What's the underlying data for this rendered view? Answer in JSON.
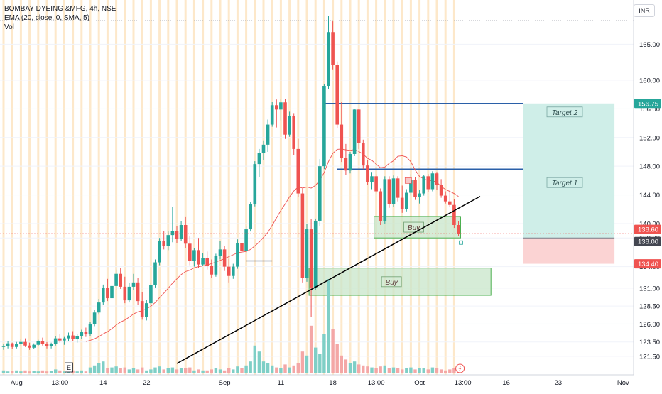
{
  "header": {
    "symbol": "BOMBAY DYEING &MFG, 4h, NSE",
    "ema_label": "EMA (20, close, 0, SMA, 5)",
    "vol_label": "Vol",
    "currency": "INR",
    "e_marker": "E"
  },
  "colors": {
    "up": "#26a69a",
    "down": "#ef5350",
    "up_vol": "#7fcfc6",
    "down_vol": "#f4a7a6",
    "session_band": "#fde5c4",
    "ema": "#ef5350",
    "trendline": "#000000",
    "level_line": "#2a5fa8",
    "buy_zone_fill": "#c8e6c9",
    "buy_zone_border": "#4caf50",
    "target_fill": "#cfeee8",
    "stop_fill": "#fbd3d3",
    "price_badge_green": "#26a69a",
    "price_badge_red": "#ef5350",
    "price_badge_dark": "#434651"
  },
  "chart_data": {
    "type": "candlestick",
    "ylim": [
      120.5,
      169
    ],
    "y_ticks": [
      "121.50",
      "123.50",
      "126.00",
      "128.50",
      "131.00",
      "134.00",
      "138.00",
      "140.00",
      "144.00",
      "148.00",
      "152.00",
      "156.00",
      "160.00",
      "165.00"
    ],
    "x_ticks": [
      {
        "label": "Aug",
        "bar": 3
      },
      {
        "label": "13:00",
        "bar": 13
      },
      {
        "label": "14",
        "bar": 23
      },
      {
        "label": "22",
        "bar": 33
      },
      {
        "label": "Sep",
        "bar": 51
      },
      {
        "label": "11",
        "bar": 64
      },
      {
        "label": "18",
        "bar": 76
      },
      {
        "label": "13:00",
        "bar": 86
      },
      {
        "label": "Oct",
        "bar": 96
      },
      {
        "label": "13:00",
        "bar": 106
      },
      {
        "label": "16",
        "bar": 116
      },
      {
        "label": "23",
        "bar": 128
      },
      {
        "label": "Nov",
        "bar": 143
      }
    ],
    "price_labels": [
      {
        "value": 156.75,
        "text": "156.75",
        "style": "green"
      },
      {
        "value": 138.6,
        "text": "138.60",
        "style": "red"
      },
      {
        "value": 138.0,
        "text": "138.00",
        "style": "dark"
      },
      {
        "value": 134.4,
        "text": "134.40",
        "style": "red"
      }
    ],
    "last_price": 138.6,
    "top_dotted": 168.3,
    "candles": [
      [
        122.8,
        123.2,
        122.4,
        122.9
      ],
      [
        122.9,
        123.6,
        122.6,
        123.3
      ],
      [
        123.3,
        123.4,
        122.5,
        122.8
      ],
      [
        122.8,
        123.5,
        122.6,
        123.2
      ],
      [
        123.2,
        123.9,
        122.9,
        123.5
      ],
      [
        123.5,
        124.0,
        122.8,
        123.0
      ],
      [
        123.0,
        123.4,
        122.4,
        122.7
      ],
      [
        122.7,
        123.3,
        122.5,
        123.1
      ],
      [
        123.1,
        123.8,
        122.9,
        123.6
      ],
      [
        123.6,
        124.1,
        123.0,
        123.2
      ],
      [
        123.2,
        123.5,
        122.6,
        122.9
      ],
      [
        122.9,
        123.4,
        122.6,
        123.2
      ],
      [
        123.2,
        124.3,
        123.0,
        124.0
      ],
      [
        124.0,
        124.6,
        123.4,
        123.7
      ],
      [
        123.7,
        124.2,
        123.1,
        124.0
      ],
      [
        124.0,
        124.8,
        123.6,
        124.4
      ],
      [
        124.4,
        125.0,
        123.6,
        123.9
      ],
      [
        123.9,
        124.6,
        123.4,
        124.3
      ],
      [
        124.3,
        125.2,
        123.9,
        124.9
      ],
      [
        124.9,
        125.5,
        124.2,
        124.6
      ],
      [
        124.6,
        126.3,
        124.3,
        126.0
      ],
      [
        126.0,
        128.0,
        125.7,
        127.6
      ],
      [
        127.6,
        129.5,
        127.3,
        129.0
      ],
      [
        129.0,
        131.5,
        128.7,
        131.0
      ],
      [
        131.0,
        132.3,
        129.2,
        129.6
      ],
      [
        129.6,
        131.8,
        129.2,
        131.3
      ],
      [
        131.3,
        133.6,
        130.8,
        133.0
      ],
      [
        133.0,
        133.8,
        130.9,
        131.2
      ],
      [
        131.2,
        132.6,
        128.9,
        129.3
      ],
      [
        129.3,
        131.7,
        129.0,
        131.2
      ],
      [
        131.2,
        133.0,
        130.8,
        131.8
      ],
      [
        131.8,
        132.4,
        128.7,
        129.2
      ],
      [
        129.2,
        130.4,
        126.6,
        127.0
      ],
      [
        127.0,
        129.4,
        126.5,
        128.9
      ],
      [
        128.9,
        131.8,
        128.5,
        131.4
      ],
      [
        131.4,
        135.0,
        131.1,
        134.6
      ],
      [
        134.6,
        138.0,
        134.2,
        137.6
      ],
      [
        137.6,
        139.0,
        136.4,
        136.9
      ],
      [
        136.9,
        138.9,
        136.3,
        138.4
      ],
      [
        138.4,
        142.3,
        137.4,
        139.0
      ],
      [
        139.0,
        139.6,
        137.3,
        137.9
      ],
      [
        137.9,
        140.3,
        137.6,
        139.8
      ],
      [
        139.8,
        141.0,
        136.6,
        137.2
      ],
      [
        137.2,
        138.3,
        134.2,
        134.8
      ],
      [
        134.8,
        136.6,
        134.0,
        136.3
      ],
      [
        136.3,
        138.0,
        133.8,
        134.3
      ],
      [
        134.3,
        135.9,
        134.1,
        135.2
      ],
      [
        135.2,
        136.1,
        133.6,
        134.1
      ],
      [
        134.1,
        135.0,
        132.4,
        132.9
      ],
      [
        132.9,
        135.8,
        132.6,
        135.5
      ],
      [
        135.5,
        137.6,
        135.0,
        136.4
      ],
      [
        136.4,
        136.9,
        133.4,
        134.0
      ],
      [
        134.0,
        135.1,
        131.8,
        132.7
      ],
      [
        132.7,
        134.4,
        132.3,
        134.0
      ],
      [
        134.0,
        137.8,
        133.7,
        137.3
      ],
      [
        137.3,
        138.4,
        135.6,
        136.2
      ],
      [
        136.2,
        139.6,
        135.9,
        139.2
      ],
      [
        139.2,
        143.0,
        138.9,
        142.7
      ],
      [
        142.7,
        148.7,
        142.4,
        148.3
      ],
      [
        148.3,
        150.4,
        146.5,
        149.8
      ],
      [
        149.8,
        151.6,
        148.9,
        151.0
      ],
      [
        151.0,
        154.5,
        150.0,
        153.8
      ],
      [
        153.8,
        157.0,
        153.5,
        156.5
      ],
      [
        156.5,
        157.3,
        153.4,
        155.9
      ],
      [
        155.9,
        157.4,
        154.4,
        156.9
      ],
      [
        156.9,
        157.4,
        151.8,
        152.4
      ],
      [
        152.4,
        155.6,
        152.1,
        155.0
      ],
      [
        155.0,
        155.4,
        149.6,
        150.4
      ],
      [
        150.4,
        151.8,
        143.7,
        144.2
      ],
      [
        144.2,
        144.9,
        131.8,
        132.4
      ],
      [
        132.4,
        140.0,
        131.9,
        139.2
      ],
      [
        139.2,
        140.6,
        127.0,
        131.1
      ],
      [
        131.1,
        140.7,
        130.8,
        140.4
      ],
      [
        140.4,
        149.0,
        139.6,
        148.0
      ],
      [
        148.0,
        159.5,
        147.6,
        159.2
      ],
      [
        159.2,
        169.0,
        158.8,
        166.7
      ],
      [
        166.7,
        168.2,
        161.5,
        162.1
      ],
      [
        162.1,
        162.6,
        153.3,
        153.8
      ],
      [
        153.8,
        157.0,
        148.6,
        149.2
      ],
      [
        149.2,
        151.1,
        146.8,
        147.4
      ],
      [
        147.4,
        150.0,
        147.0,
        149.7
      ],
      [
        149.7,
        156.0,
        149.4,
        155.9
      ],
      [
        155.9,
        156.0,
        150.4,
        151.2
      ],
      [
        151.2,
        151.7,
        147.6,
        148.1
      ],
      [
        148.1,
        148.9,
        145.4,
        145.8
      ],
      [
        145.8,
        147.2,
        144.8,
        146.6
      ],
      [
        146.6,
        146.9,
        144.2,
        144.5
      ],
      [
        144.5,
        144.9,
        139.8,
        140.3
      ],
      [
        140.3,
        146.6,
        139.9,
        146.2
      ],
      [
        146.2,
        146.6,
        142.2,
        142.7
      ],
      [
        142.7,
        146.7,
        142.3,
        146.3
      ],
      [
        146.3,
        146.6,
        143.1,
        143.6
      ],
      [
        143.6,
        145.3,
        141.5,
        142.0
      ],
      [
        142.0,
        144.8,
        141.7,
        144.3
      ],
      [
        144.3,
        146.9,
        143.9,
        146.1
      ],
      [
        146.1,
        146.5,
        143.3,
        143.7
      ],
      [
        143.7,
        144.7,
        142.8,
        144.2
      ],
      [
        144.2,
        146.8,
        143.9,
        146.6
      ],
      [
        146.6,
        146.9,
        144.4,
        144.8
      ],
      [
        144.8,
        147.3,
        144.5,
        147.0
      ],
      [
        147.0,
        147.2,
        144.7,
        145.4
      ],
      [
        145.4,
        146.2,
        143.6,
        143.9
      ],
      [
        143.9,
        144.5,
        142.8,
        143.1
      ],
      [
        143.1,
        144.6,
        142.3,
        142.6
      ],
      [
        142.6,
        143.4,
        139.4,
        139.8
      ],
      [
        139.8,
        140.3,
        138.3,
        138.6
      ]
    ],
    "volume": [
      [
        0.03,
        1
      ],
      [
        0.02,
        1
      ],
      [
        0.025,
        0
      ],
      [
        0.03,
        1
      ],
      [
        0.02,
        1
      ],
      [
        0.03,
        0
      ],
      [
        0.02,
        0
      ],
      [
        0.025,
        1
      ],
      [
        0.02,
        1
      ],
      [
        0.03,
        0
      ],
      [
        0.02,
        0
      ],
      [
        0.025,
        1
      ],
      [
        0.04,
        1
      ],
      [
        0.03,
        0
      ],
      [
        0.02,
        1
      ],
      [
        0.05,
        1
      ],
      [
        0.03,
        0
      ],
      [
        0.02,
        1
      ],
      [
        0.03,
        1
      ],
      [
        0.02,
        0
      ],
      [
        0.06,
        1
      ],
      [
        0.08,
        1
      ],
      [
        0.1,
        1
      ],
      [
        0.12,
        1
      ],
      [
        0.05,
        0
      ],
      [
        0.06,
        1
      ],
      [
        0.07,
        1
      ],
      [
        0.05,
        0
      ],
      [
        0.06,
        0
      ],
      [
        0.04,
        1
      ],
      [
        0.05,
        1
      ],
      [
        0.04,
        0
      ],
      [
        0.06,
        0
      ],
      [
        0.03,
        1
      ],
      [
        0.04,
        1
      ],
      [
        0.06,
        1
      ],
      [
        0.07,
        1
      ],
      [
        0.04,
        0
      ],
      [
        0.05,
        1
      ],
      [
        0.06,
        1
      ],
      [
        0.04,
        0
      ],
      [
        0.05,
        1
      ],
      [
        0.05,
        0
      ],
      [
        0.06,
        0
      ],
      [
        0.03,
        1
      ],
      [
        0.04,
        0
      ],
      [
        0.03,
        1
      ],
      [
        0.03,
        0
      ],
      [
        0.04,
        0
      ],
      [
        0.05,
        1
      ],
      [
        0.04,
        1
      ],
      [
        0.03,
        0
      ],
      [
        0.05,
        0
      ],
      [
        0.04,
        1
      ],
      [
        0.07,
        1
      ],
      [
        0.05,
        0
      ],
      [
        0.08,
        1
      ],
      [
        0.12,
        1
      ],
      [
        0.28,
        1
      ],
      [
        0.22,
        1
      ],
      [
        0.12,
        1
      ],
      [
        0.1,
        1
      ],
      [
        0.08,
        1
      ],
      [
        0.06,
        0
      ],
      [
        0.05,
        1
      ],
      [
        0.09,
        0
      ],
      [
        0.06,
        1
      ],
      [
        0.08,
        0
      ],
      [
        0.1,
        0
      ],
      [
        0.22,
        0
      ],
      [
        0.18,
        1
      ],
      [
        0.48,
        0
      ],
      [
        0.26,
        1
      ],
      [
        0.2,
        1
      ],
      [
        0.4,
        1
      ],
      [
        0.95,
        1
      ],
      [
        0.45,
        0
      ],
      [
        0.3,
        0
      ],
      [
        0.18,
        0
      ],
      [
        0.14,
        0
      ],
      [
        0.1,
        1
      ],
      [
        0.12,
        1
      ],
      [
        0.09,
        0
      ],
      [
        0.08,
        0
      ],
      [
        0.07,
        0
      ],
      [
        0.06,
        1
      ],
      [
        0.05,
        0
      ],
      [
        0.07,
        0
      ],
      [
        0.08,
        1
      ],
      [
        0.05,
        0
      ],
      [
        0.06,
        1
      ],
      [
        0.05,
        0
      ],
      [
        0.04,
        0
      ],
      [
        0.05,
        1
      ],
      [
        0.06,
        1
      ],
      [
        0.04,
        0
      ],
      [
        0.05,
        1
      ],
      [
        0.05,
        1
      ],
      [
        0.04,
        0
      ],
      [
        0.06,
        1
      ],
      [
        0.05,
        0
      ],
      [
        0.04,
        0
      ],
      [
        0.03,
        0
      ],
      [
        0.04,
        0
      ],
      [
        0.05,
        0
      ],
      [
        0.02,
        0
      ]
    ],
    "buy_zones": [
      {
        "label": "Buy",
        "bar_start": 86,
        "bar_end": 105,
        "low": 138.0,
        "high": 141.0
      },
      {
        "label": "Buy",
        "bar_start": 71,
        "bar_end": 112,
        "low": 130.0,
        "high": 133.8
      }
    ],
    "target_lines": [
      {
        "label": "Target 2",
        "bar_start": 74,
        "bar_end": 120,
        "value": 156.75
      },
      {
        "label": "Target 1",
        "bar_start": 77,
        "bar_end": 120,
        "value": 147.6
      }
    ],
    "position": {
      "bar_start": 120,
      "bar_end": 141,
      "entry": 138.0,
      "target": 156.75,
      "stop": 134.4
    },
    "trendline": {
      "bar_start": 40,
      "value_start": 120.5,
      "bar_end": 110,
      "value_end": 143.8
    },
    "short_line": {
      "bar_start": 56,
      "bar_end": 62,
      "value": 134.8
    }
  }
}
